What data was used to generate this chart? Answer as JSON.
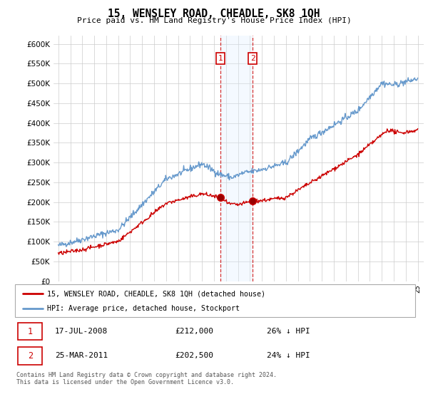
{
  "title": "15, WENSLEY ROAD, CHEADLE, SK8 1QH",
  "subtitle": "Price paid vs. HM Land Registry's House Price Index (HPI)",
  "legend_line1": "15, WENSLEY ROAD, CHEADLE, SK8 1QH (detached house)",
  "legend_line2": "HPI: Average price, detached house, Stockport",
  "transaction1_date": "17-JUL-2008",
  "transaction1_price": "£212,000",
  "transaction1_hpi": "26% ↓ HPI",
  "transaction2_date": "25-MAR-2011",
  "transaction2_price": "£202,500",
  "transaction2_hpi": "24% ↓ HPI",
  "footer": "Contains HM Land Registry data © Crown copyright and database right 2024.\nThis data is licensed under the Open Government Licence v3.0.",
  "red_color": "#cc0000",
  "blue_color": "#6699cc",
  "shading_color": "#ddeeff",
  "ylim_min": 0,
  "ylim_max": 620000,
  "transaction1_year": 2008.54,
  "transaction1_value": 212000,
  "transaction2_year": 2011.23,
  "transaction2_value": 202500
}
